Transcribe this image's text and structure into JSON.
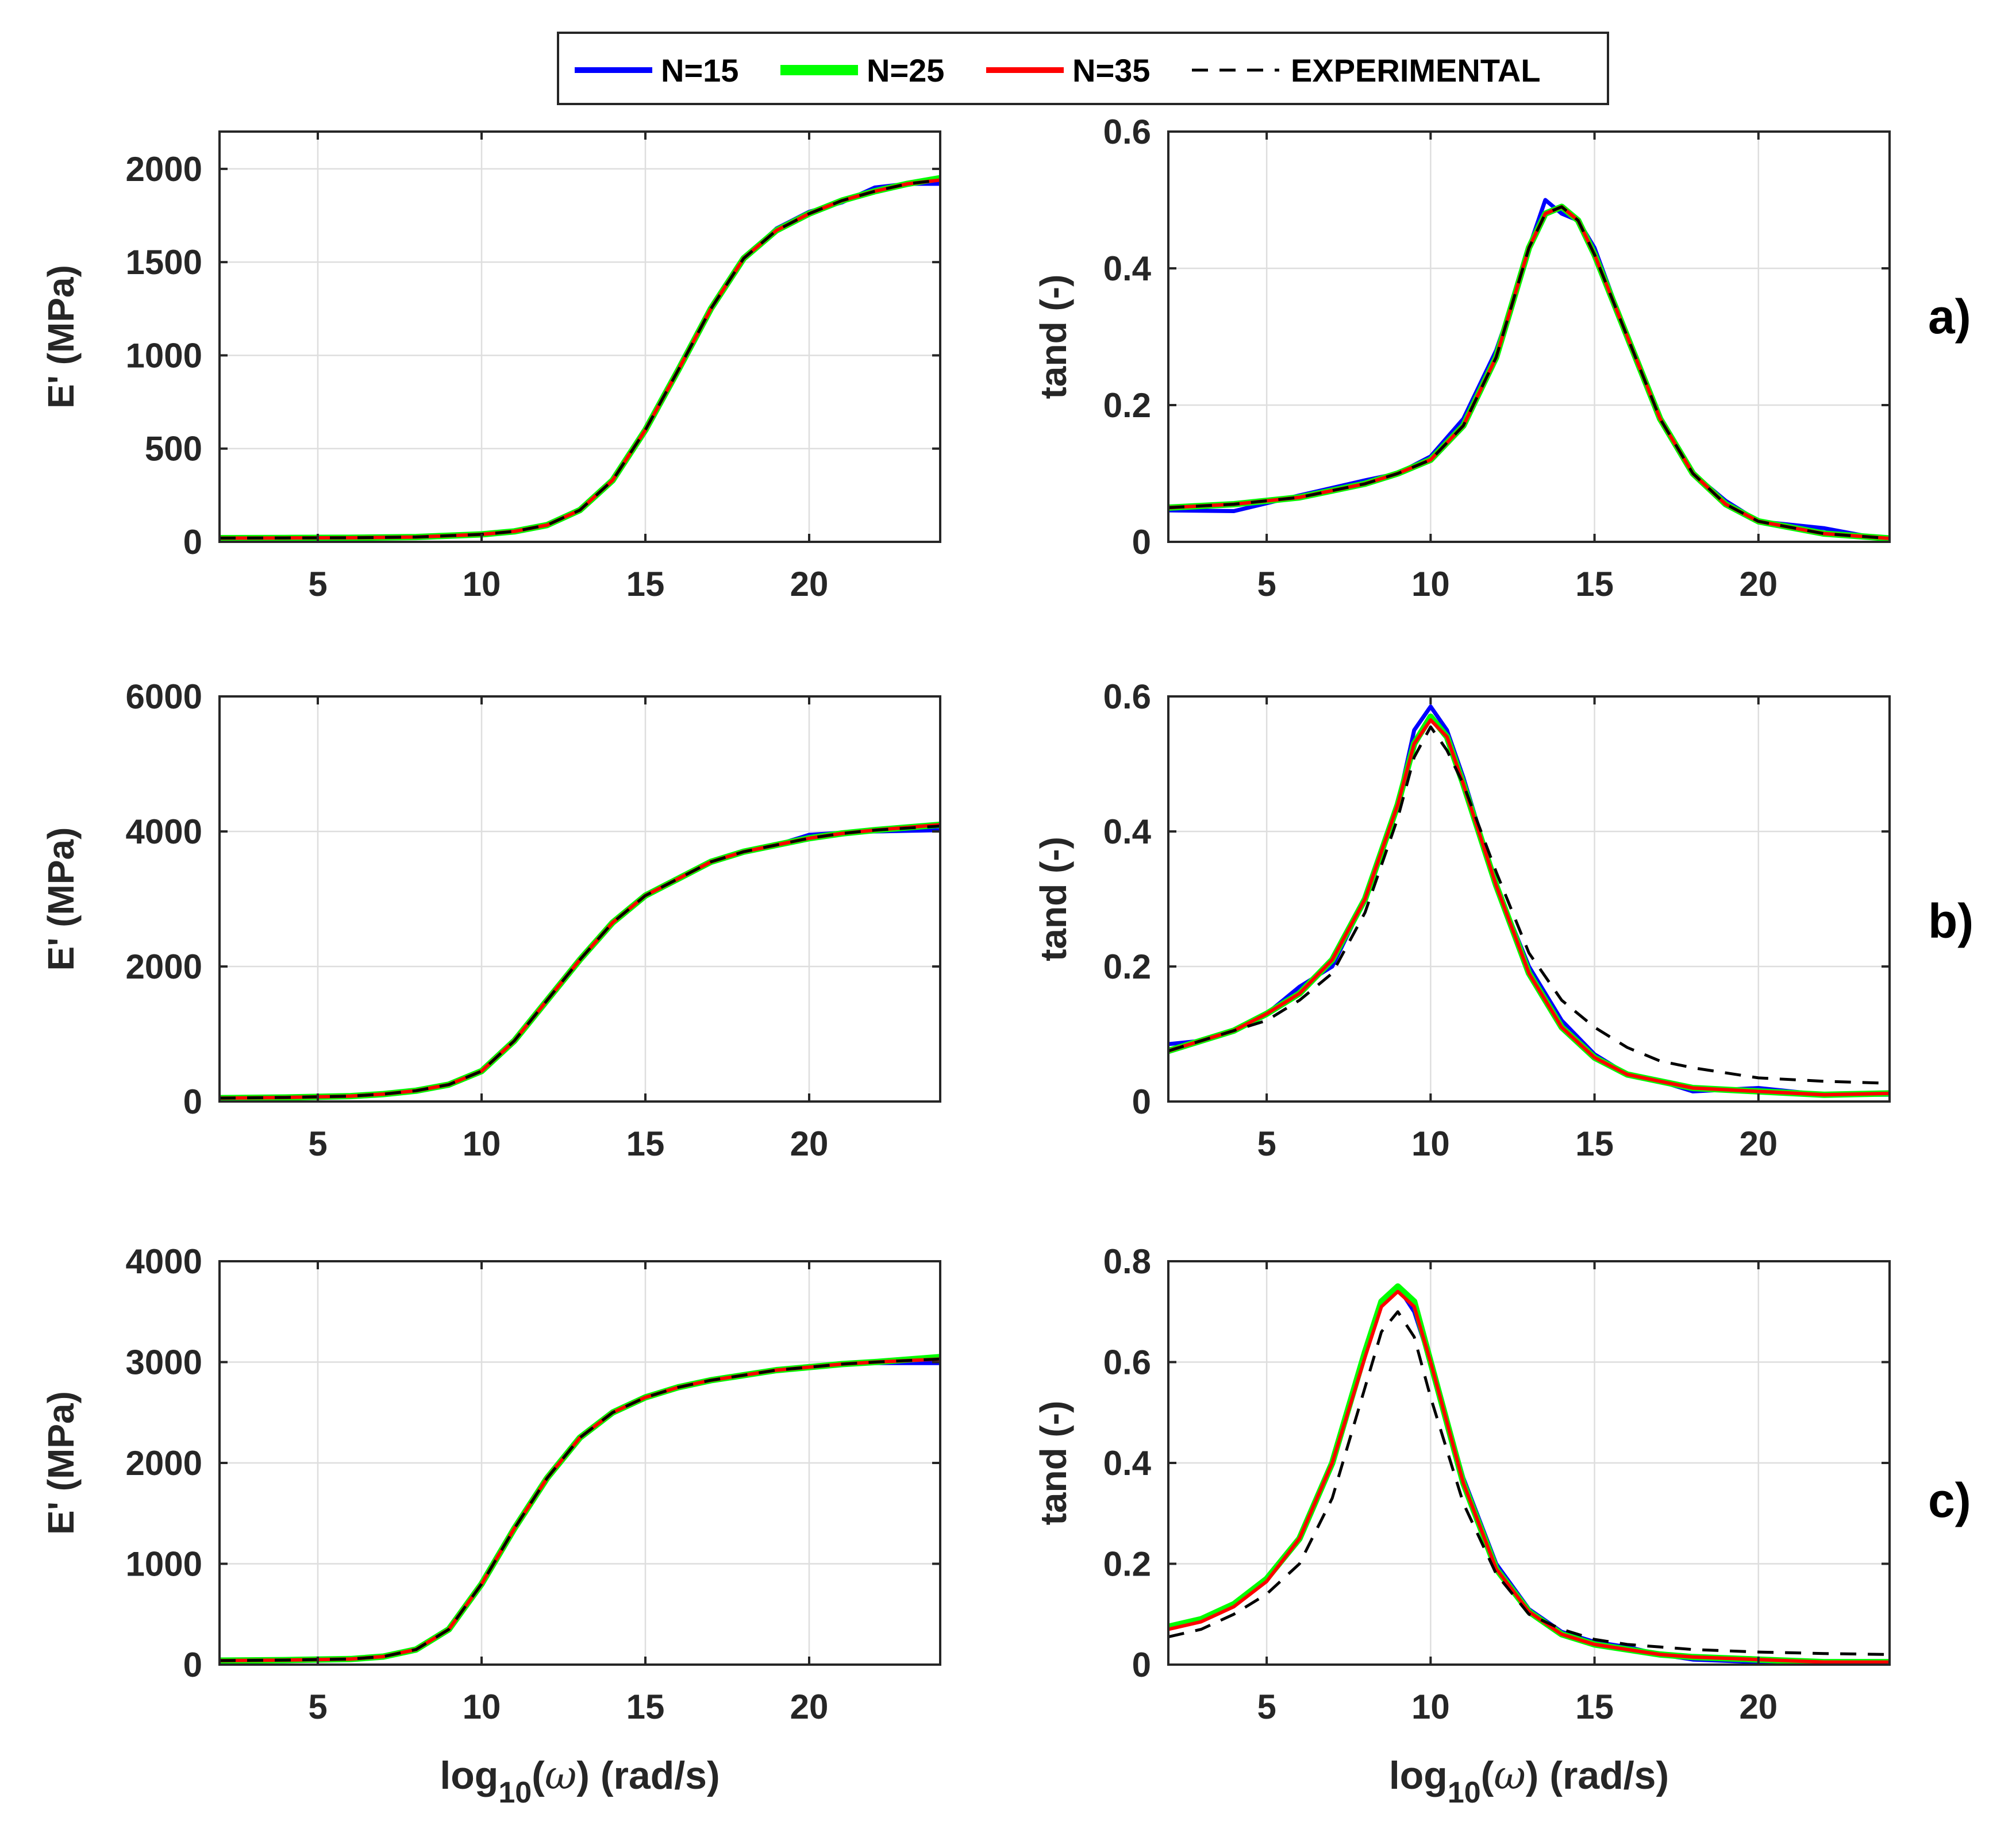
{
  "legend": [
    {
      "label": "N=15",
      "color": "#0000ff",
      "dash": ""
    },
    {
      "label": "N=25",
      "color": "#00ff00",
      "dash": ""
    },
    {
      "label": "N=35",
      "color": "#ff0000",
      "dash": ""
    },
    {
      "label": "EXPERIMENTAL",
      "color": "#000000",
      "dash": "28 20"
    }
  ],
  "panel_labels": [
    "a)",
    "b)",
    "c)"
  ],
  "chart_data": [
    {
      "type": "line",
      "panel": "a)",
      "column": "left",
      "xlabel": "",
      "ylabel": "E' (MPa)",
      "xlim": [
        2,
        24
      ],
      "ylim": [
        0,
        2200
      ],
      "xticks": [
        5,
        10,
        15,
        20
      ],
      "yticks": [
        0,
        500,
        1000,
        1500,
        2000
      ],
      "grid": true,
      "x": [
        2,
        4,
        6,
        8,
        10,
        11,
        12,
        13,
        14,
        15,
        16,
        17,
        18,
        19,
        20,
        21,
        22,
        23,
        24
      ],
      "series": [
        {
          "name": "N=15",
          "values": [
            20,
            21,
            22,
            26,
            40,
            56,
            90,
            170,
            330,
            600,
            920,
            1250,
            1520,
            1680,
            1770,
            1820,
            1900,
            1920,
            1920
          ]
        },
        {
          "name": "N=25",
          "values": [
            20,
            21,
            22,
            26,
            40,
            56,
            90,
            170,
            330,
            600,
            920,
            1250,
            1520,
            1670,
            1760,
            1830,
            1880,
            1920,
            1950
          ]
        },
        {
          "name": "N=35",
          "values": [
            20,
            21,
            22,
            26,
            40,
            56,
            90,
            170,
            330,
            600,
            920,
            1250,
            1520,
            1670,
            1760,
            1830,
            1880,
            1920,
            1940
          ]
        },
        {
          "name": "EXPERIMENTAL",
          "values": [
            20,
            21,
            22,
            26,
            40,
            56,
            90,
            170,
            330,
            600,
            920,
            1250,
            1520,
            1670,
            1760,
            1830,
            1880,
            1920,
            1940
          ]
        }
      ]
    },
    {
      "type": "line",
      "panel": "a)",
      "column": "right",
      "xlabel": "",
      "ylabel": "tand (-)",
      "xlim": [
        2,
        24
      ],
      "ylim": [
        0,
        0.6
      ],
      "xticks": [
        5,
        10,
        15,
        20
      ],
      "yticks": [
        0,
        0.2,
        0.4,
        0.6
      ],
      "grid": true,
      "x": [
        2,
        4,
        6,
        8,
        9,
        10,
        11,
        12,
        12.5,
        13,
        13.5,
        14,
        14.5,
        15,
        16,
        17,
        18,
        19,
        20,
        22,
        24
      ],
      "series": [
        {
          "name": "N=15",
          "values": [
            0.046,
            0.045,
            0.068,
            0.09,
            0.1,
            0.125,
            0.18,
            0.28,
            0.35,
            0.43,
            0.5,
            0.48,
            0.47,
            0.43,
            0.3,
            0.18,
            0.1,
            0.06,
            0.03,
            0.02,
            0.002
          ]
        },
        {
          "name": "N=25",
          "values": [
            0.05,
            0.055,
            0.065,
            0.085,
            0.1,
            0.12,
            0.17,
            0.27,
            0.35,
            0.43,
            0.48,
            0.49,
            0.47,
            0.42,
            0.3,
            0.18,
            0.1,
            0.055,
            0.03,
            0.012,
            0.005
          ]
        },
        {
          "name": "N=35",
          "values": [
            0.05,
            0.055,
            0.065,
            0.085,
            0.1,
            0.12,
            0.17,
            0.27,
            0.35,
            0.43,
            0.48,
            0.49,
            0.47,
            0.42,
            0.3,
            0.18,
            0.1,
            0.055,
            0.03,
            0.012,
            0.005
          ]
        },
        {
          "name": "EXPERIMENTAL",
          "values": [
            0.05,
            0.055,
            0.065,
            0.085,
            0.1,
            0.12,
            0.17,
            0.27,
            0.35,
            0.43,
            0.48,
            0.49,
            0.47,
            0.42,
            0.3,
            0.18,
            0.1,
            0.055,
            0.03,
            0.012,
            0.005
          ]
        }
      ]
    },
    {
      "type": "line",
      "panel": "b)",
      "column": "left",
      "xlabel": "",
      "ylabel": "E' (MPa)",
      "xlim": [
        2,
        24
      ],
      "ylim": [
        0,
        6000
      ],
      "xticks": [
        5,
        10,
        15,
        20
      ],
      "yticks": [
        0,
        2000,
        4000,
        6000
      ],
      "grid": true,
      "x": [
        2,
        4,
        6,
        7,
        8,
        9,
        10,
        11,
        12,
        13,
        14,
        15,
        16,
        17,
        18,
        19,
        20,
        21,
        22,
        24
      ],
      "series": [
        {
          "name": "N=15",
          "values": [
            50,
            60,
            80,
            110,
            160,
            250,
            450,
            900,
            1500,
            2100,
            2650,
            3050,
            3300,
            3550,
            3700,
            3800,
            3950,
            3980,
            4000,
            4020
          ]
        },
        {
          "name": "N=25",
          "values": [
            50,
            60,
            80,
            110,
            160,
            250,
            450,
            900,
            1500,
            2100,
            2650,
            3050,
            3300,
            3550,
            3700,
            3800,
            3900,
            3970,
            4020,
            4100
          ]
        },
        {
          "name": "N=35",
          "values": [
            50,
            60,
            80,
            110,
            160,
            250,
            450,
            900,
            1500,
            2100,
            2650,
            3050,
            3300,
            3550,
            3700,
            3800,
            3900,
            3970,
            4020,
            4100
          ]
        },
        {
          "name": "EXPERIMENTAL",
          "values": [
            50,
            60,
            80,
            110,
            160,
            250,
            450,
            900,
            1500,
            2100,
            2650,
            3050,
            3300,
            3550,
            3700,
            3800,
            3900,
            3970,
            4020,
            4080
          ]
        }
      ]
    },
    {
      "type": "line",
      "panel": "b)",
      "column": "right",
      "xlabel": "",
      "ylabel": "tand (-)",
      "xlim": [
        2,
        24
      ],
      "ylim": [
        0,
        0.6
      ],
      "xticks": [
        5,
        10,
        15,
        20
      ],
      "yticks": [
        0,
        0.2,
        0.4,
        0.6
      ],
      "grid": true,
      "x": [
        2,
        3,
        4,
        5,
        6,
        7,
        8,
        9,
        9.5,
        10,
        10.5,
        11,
        12,
        13,
        14,
        15,
        16,
        17,
        18,
        20,
        22,
        24
      ],
      "series": [
        {
          "name": "N=15",
          "values": [
            0.085,
            0.09,
            0.105,
            0.13,
            0.17,
            0.2,
            0.3,
            0.44,
            0.55,
            0.585,
            0.55,
            0.48,
            0.32,
            0.2,
            0.12,
            0.07,
            0.04,
            0.03,
            0.015,
            0.02,
            0.01,
            0.01
          ]
        },
        {
          "name": "N=25",
          "values": [
            0.075,
            0.09,
            0.105,
            0.13,
            0.16,
            0.21,
            0.3,
            0.44,
            0.53,
            0.57,
            0.54,
            0.47,
            0.32,
            0.19,
            0.11,
            0.065,
            0.04,
            0.03,
            0.02,
            0.015,
            0.01,
            0.012
          ]
        },
        {
          "name": "N=35",
          "values": [
            0.075,
            0.09,
            0.105,
            0.13,
            0.16,
            0.21,
            0.3,
            0.44,
            0.53,
            0.565,
            0.54,
            0.47,
            0.32,
            0.19,
            0.11,
            0.065,
            0.04,
            0.03,
            0.02,
            0.015,
            0.01,
            0.012
          ]
        },
        {
          "name": "EXPERIMENTAL",
          "values": [
            0.075,
            0.09,
            0.105,
            0.12,
            0.15,
            0.19,
            0.28,
            0.42,
            0.51,
            0.555,
            0.52,
            0.47,
            0.34,
            0.22,
            0.15,
            0.11,
            0.08,
            0.06,
            0.05,
            0.035,
            0.03,
            0.027
          ]
        }
      ]
    },
    {
      "type": "line",
      "panel": "c)",
      "column": "left",
      "xlabel": "log10(ω) (rad/s)",
      "ylabel": "E' (MPa)",
      "xlim": [
        2,
        24
      ],
      "ylim": [
        0,
        4000
      ],
      "xticks": [
        5,
        10,
        15,
        20
      ],
      "yticks": [
        0,
        1000,
        2000,
        3000,
        4000
      ],
      "grid": true,
      "x": [
        2,
        4,
        6,
        7,
        8,
        9,
        10,
        11,
        12,
        13,
        14,
        15,
        16,
        17,
        18,
        19,
        20,
        21,
        22,
        24
      ],
      "series": [
        {
          "name": "N=15",
          "values": [
            40,
            45,
            55,
            80,
            150,
            350,
            800,
            1350,
            1850,
            2250,
            2500,
            2650,
            2750,
            2820,
            2870,
            2920,
            2960,
            2980,
            2990,
            2990
          ]
        },
        {
          "name": "N=25",
          "values": [
            40,
            45,
            55,
            80,
            150,
            350,
            800,
            1350,
            1850,
            2250,
            2500,
            2650,
            2750,
            2820,
            2870,
            2920,
            2950,
            2980,
            3000,
            3050
          ]
        },
        {
          "name": "N=35",
          "values": [
            40,
            45,
            55,
            80,
            150,
            350,
            800,
            1350,
            1850,
            2250,
            2500,
            2650,
            2750,
            2820,
            2870,
            2920,
            2950,
            2980,
            3000,
            3030
          ]
        },
        {
          "name": "EXPERIMENTAL",
          "values": [
            40,
            45,
            55,
            80,
            150,
            350,
            800,
            1350,
            1850,
            2250,
            2500,
            2650,
            2750,
            2820,
            2870,
            2920,
            2950,
            2980,
            3000,
            3030
          ]
        }
      ]
    },
    {
      "type": "line",
      "panel": "c)",
      "column": "right",
      "xlabel": "log10(ω) (rad/s)",
      "ylabel": "tand (-)",
      "xlim": [
        2,
        24
      ],
      "ylim": [
        0,
        0.8
      ],
      "xticks": [
        5,
        10,
        15,
        20
      ],
      "yticks": [
        0,
        0.2,
        0.4,
        0.6,
        0.8
      ],
      "grid": true,
      "x": [
        2,
        3,
        4,
        5,
        6,
        7,
        8,
        8.5,
        9,
        9.5,
        10,
        11,
        12,
        13,
        14,
        15,
        16,
        17,
        18,
        20,
        22,
        24
      ],
      "series": [
        {
          "name": "N=15",
          "values": [
            0.075,
            0.09,
            0.12,
            0.17,
            0.25,
            0.4,
            0.62,
            0.72,
            0.75,
            0.7,
            0.6,
            0.37,
            0.2,
            0.11,
            0.065,
            0.045,
            0.035,
            0.02,
            0.01,
            0.005,
            0.005,
            0.005
          ]
        },
        {
          "name": "N=25",
          "values": [
            0.075,
            0.09,
            0.12,
            0.17,
            0.25,
            0.4,
            0.62,
            0.72,
            0.75,
            0.72,
            0.6,
            0.36,
            0.19,
            0.105,
            0.06,
            0.04,
            0.03,
            0.02,
            0.015,
            0.01,
            0.005,
            0.005
          ]
        },
        {
          "name": "N=35",
          "values": [
            0.07,
            0.085,
            0.115,
            0.165,
            0.25,
            0.4,
            0.61,
            0.71,
            0.74,
            0.71,
            0.6,
            0.36,
            0.19,
            0.105,
            0.06,
            0.04,
            0.03,
            0.02,
            0.015,
            0.01,
            0.005,
            0.005
          ]
        },
        {
          "name": "EXPERIMENTAL",
          "values": [
            0.055,
            0.07,
            0.1,
            0.14,
            0.2,
            0.33,
            0.55,
            0.66,
            0.7,
            0.65,
            0.53,
            0.32,
            0.18,
            0.1,
            0.07,
            0.05,
            0.04,
            0.035,
            0.03,
            0.025,
            0.022,
            0.02
          ]
        }
      ]
    }
  ]
}
